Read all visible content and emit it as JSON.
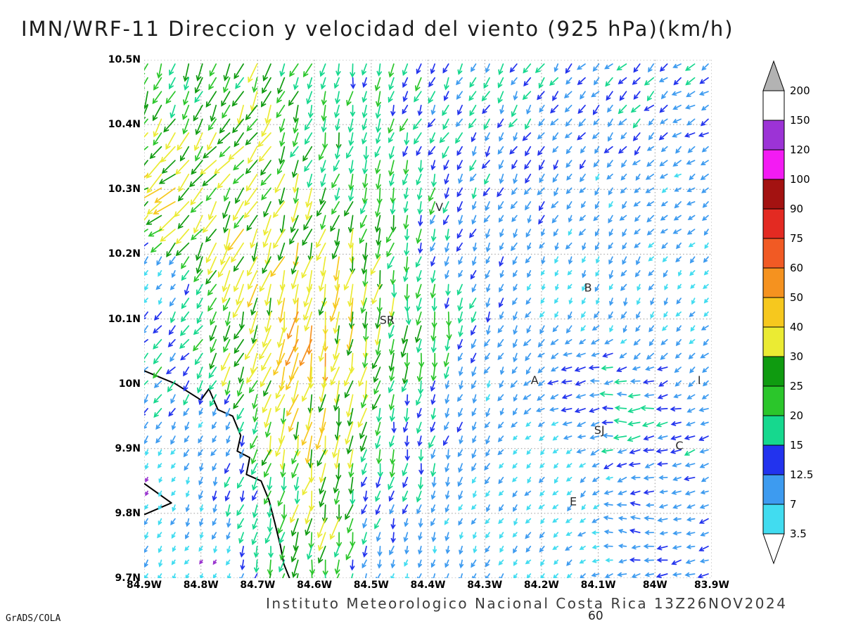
{
  "title": "IMN/WRF-11 Direccion y velocidad del viento (925 hPa)(km/h)",
  "watermark": "GrADS/COLA",
  "footer": {
    "text": "Instituto Meteorologico Nacional Costa Rica 13Z26NOV2024",
    "overlay_value": "60"
  },
  "chart_data": {
    "type": "vector",
    "title": "IMN/WRF-11 Direccion y velocidad del viento (925 hPa)(km/h)",
    "variable": "wind direction and speed",
    "level": "925 hPa",
    "units": "km/h",
    "valid_time": "13Z26NOV2024",
    "source_caption": "Instituto Meteorologico Nacional Costa Rica",
    "x_range": [
      -84.9,
      -83.9
    ],
    "y_range": [
      9.7,
      10.5
    ],
    "x_ticks": [
      "84.9W",
      "84.8W",
      "84.7W",
      "84.6W",
      "84.5W",
      "84.4W",
      "84.3W",
      "84.2W",
      "84.1W",
      "84W",
      "83.9W"
    ],
    "y_ticks": [
      "10.5N",
      "10.4N",
      "10.3N",
      "10.2N",
      "10.1N",
      "10N",
      "9.9N",
      "9.8N",
      "9.7N"
    ],
    "grid": "dotted",
    "speed_levels": [
      3.5,
      7,
      12.5,
      15,
      20,
      25,
      30,
      40,
      50,
      60,
      75,
      90,
      100,
      120,
      150,
      200
    ],
    "band_colors": [
      "#41dcf0",
      "#3d9bf0",
      "#2233ee",
      "#16d88e",
      "#2bc62b",
      "#0f9b10",
      "#ebeb33",
      "#f6c81e",
      "#f5921f",
      "#f15a24",
      "#e32a22",
      "#a31211",
      "#f31bf3",
      "#9c33d6",
      "#ffffff"
    ],
    "above_color": "#b3b3b3",
    "below_color": "#ffffff",
    "calm_arrow_color": "#9a35cf",
    "wind_samples": [
      [
        -84.9,
        10.5,
        -8,
        -21
      ],
      [
        -84.72,
        10.49,
        -11,
        -25
      ],
      [
        -84.52,
        10.42,
        -4,
        -20
      ],
      [
        -84.5,
        10.5,
        -3,
        -17
      ],
      [
        -84.35,
        10.4,
        -8,
        -14
      ],
      [
        -84.28,
        10.48,
        -7,
        -13
      ],
      [
        -84.15,
        10.4,
        -7,
        -9
      ],
      [
        -84.05,
        10.47,
        -10,
        -9
      ],
      [
        -83.9,
        10.44,
        -11,
        -6
      ],
      [
        -83.95,
        10.3,
        -8,
        -5
      ],
      [
        -84.88,
        10.29,
        -30,
        -22
      ],
      [
        -84.895,
        10.16,
        -3,
        -4
      ],
      [
        -84.76,
        10.36,
        -17,
        -23
      ],
      [
        -84.68,
        10.22,
        -14,
        -36
      ],
      [
        -84.62,
        10.08,
        -11,
        -50
      ],
      [
        -84.59,
        9.94,
        -9,
        -40
      ],
      [
        -84.57,
        9.8,
        -6,
        -31
      ],
      [
        -84.62,
        9.71,
        -4,
        -23
      ],
      [
        -84.7,
        10.04,
        -13,
        -27
      ],
      [
        -84.56,
        10.16,
        -8,
        -34
      ],
      [
        -84.45,
        10.3,
        -4,
        -20
      ],
      [
        -84.42,
        10.1,
        -2,
        -25
      ],
      [
        -84.44,
        9.9,
        -3,
        -17
      ],
      [
        -84.5,
        9.8,
        -4,
        -12
      ],
      [
        -84.4,
        9.74,
        -2,
        -9
      ],
      [
        -84.33,
        10.2,
        -4,
        -9
      ],
      [
        -84.25,
        10.31,
        -6,
        -10
      ],
      [
        -84.18,
        10.16,
        -2,
        -4
      ],
      [
        -84.3,
        10.0,
        -4,
        -8
      ],
      [
        -84.22,
        9.9,
        -3,
        -3
      ],
      [
        -84.3,
        9.8,
        -3,
        -5
      ],
      [
        -84.09,
        10.29,
        -5,
        -6
      ],
      [
        -84.04,
        10.12,
        -3,
        -7
      ],
      [
        -84.12,
        10.0,
        -14,
        -2
      ],
      [
        -84.04,
        9.95,
        -18,
        -1
      ],
      [
        -83.94,
        9.93,
        -12,
        -3
      ],
      [
        -84.15,
        9.82,
        -4,
        -5
      ],
      [
        -84.04,
        9.78,
        -11,
        2
      ],
      [
        -83.92,
        9.74,
        -11,
        -4
      ],
      [
        -83.92,
        10.15,
        -3,
        -4
      ],
      [
        -83.9,
        10.01,
        -7,
        -6
      ],
      [
        -84.85,
        10.05,
        -11,
        -12
      ],
      [
        -84.78,
        9.93,
        -4,
        -6
      ],
      [
        -84.88,
        9.85,
        -2,
        -3
      ],
      [
        -84.8,
        9.72,
        -2,
        -3
      ],
      [
        -84.45,
        9.7,
        -2,
        -6
      ],
      [
        -84.2,
        9.7,
        -4,
        -4
      ],
      [
        -83.95,
        9.7,
        -12,
        -2
      ]
    ],
    "coastline": [
      [
        [
          -84.9,
          10.02
        ],
        [
          -84.845,
          10.0
        ],
        [
          -84.8,
          9.975
        ],
        [
          -84.786,
          9.992
        ],
        [
          -84.77,
          9.96
        ],
        [
          -84.744,
          9.95
        ],
        [
          -84.73,
          9.92
        ],
        [
          -84.736,
          9.896
        ],
        [
          -84.714,
          9.886
        ],
        [
          -84.72,
          9.86
        ],
        [
          -84.694,
          9.85
        ],
        [
          -84.68,
          9.82
        ],
        [
          -84.67,
          9.786
        ],
        [
          -84.66,
          9.75
        ],
        [
          -84.654,
          9.722
        ],
        [
          -84.644,
          9.7
        ]
      ],
      [
        [
          -84.9,
          9.846
        ],
        [
          -84.852,
          9.816
        ],
        [
          -84.9,
          9.798
        ]
      ]
    ],
    "stations": [
      {
        "label": "V",
        "lon": -84.38,
        "lat": 10.272
      },
      {
        "label": "B",
        "lon": -84.118,
        "lat": 10.148
      },
      {
        "label": "SR",
        "lon": -84.472,
        "lat": 10.098
      },
      {
        "label": "A",
        "lon": -84.212,
        "lat": 10.005
      },
      {
        "label": "SJ",
        "lon": -84.098,
        "lat": 9.928
      },
      {
        "label": "C",
        "lon": -83.957,
        "lat": 9.904
      },
      {
        "label": "E",
        "lon": -84.144,
        "lat": 9.818
      },
      {
        "label": "I",
        "lon": -83.922,
        "lat": 10.005
      }
    ]
  }
}
